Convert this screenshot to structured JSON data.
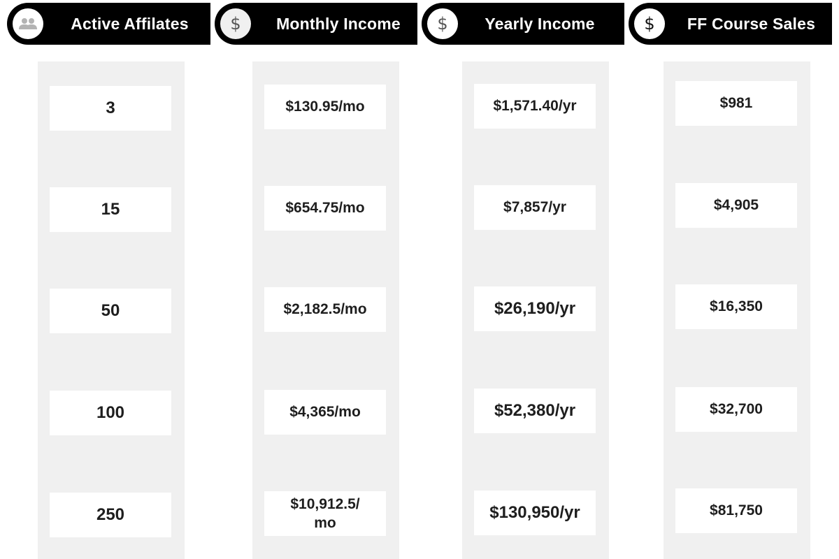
{
  "headers": {
    "affiliates": {
      "label": "Active Affilates",
      "icon": "people-icon"
    },
    "monthly": {
      "label": "Monthly Income",
      "icon": "dollar-icon"
    },
    "yearly": {
      "label": "Yearly Income",
      "icon": "dollar-icon"
    },
    "course_sales": {
      "label": "FF Course Sales",
      "icon": "dollar-icon"
    }
  },
  "columns": {
    "affiliates": [
      "3",
      "15",
      "50",
      "100",
      "250"
    ],
    "monthly": [
      "$130.95/mo",
      "$654.75/mo",
      "$2,182.5/mo",
      "$4,365/mo",
      "$10,912.5/ mo"
    ],
    "yearly": [
      "$1,571.40/yr",
      "$7,857/yr",
      "$26,190/yr",
      "$52,380/yr",
      "$130,950/yr"
    ],
    "course_sales": [
      "$981",
      "$4,905",
      "$16,350",
      "$32,700",
      "$81,750"
    ]
  },
  "colors": {
    "header_bg": "#000000",
    "header_text": "#ffffff",
    "column_bg": "#f0f0f0",
    "cell_bg": "#ffffff",
    "cell_text": "#1e1e1e",
    "icon_glyph": "#555555"
  }
}
